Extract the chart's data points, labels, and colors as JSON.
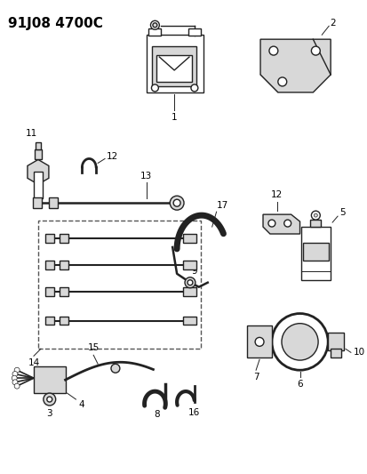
{
  "title": "91J08 4700C",
  "bg_color": "#ffffff",
  "title_fontsize": 11,
  "title_fontweight": "bold",
  "label_fontsize": 7.5,
  "ec": "#222222",
  "lw": 1.0
}
